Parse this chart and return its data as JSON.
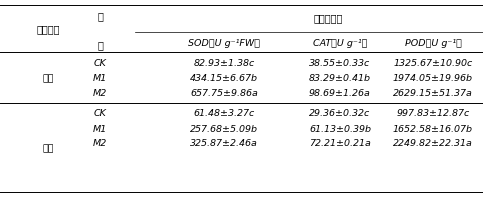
{
  "title_stress": "胁迫程度",
  "title_treatment": "处理",
  "title_enzyme": "保护酶活性",
  "title_SOD": "SOD（U g⁻¹FW）",
  "title_CAT": "CAT（U g⁻¹）",
  "title_POD": "POD（U g⁻¹）",
  "group_zhong": "中度",
  "group_zhong_sup": "↗",
  "group_zhong_arrow": "↵",
  "group_zhong_label": "中度↵",
  "group_zhong_label2": "中度",
  "group_zhong_txt": "中度",
  "group_chong_txt": "重度",
  "groups": [
    "中度",
    "重度"
  ],
  "treatments": [
    "CK",
    "M1",
    "M2"
  ],
  "data": {
    "中度": {
      "CK": {
        "SOD": "82.93±1.38c",
        "CAT": "38.55±0.33c",
        "POD": "1325.67±10.90c"
      },
      "M1": {
        "SOD": "434.15±6.67b",
        "CAT": "83.29±0.41b",
        "POD": "1974.05±19.96b"
      },
      "M2": {
        "SOD": "657.75±9.86a",
        "CAT": "98.69±1.26a",
        "POD": "2629.15±51.37a"
      }
    },
    "重度": {
      "CK": {
        "SOD": "61.48±3.27c",
        "CAT": "29.36±0.32c",
        "POD": "997.83±12.87c"
      },
      "M1": {
        "SOD": "257.68±5.09b",
        "CAT": "61.13±0.39b",
        "POD": "1652.58±16.07b"
      },
      "M2": {
        "SOD": "325.87±2.46a",
        "CAT": "72.21±0.21a",
        "POD": "2249.82±22.31a"
      }
    }
  },
  "bg_color": "#ffffff",
  "font_size": 6.8,
  "header_font_size": 7.0,
  "line_color": "#333333"
}
